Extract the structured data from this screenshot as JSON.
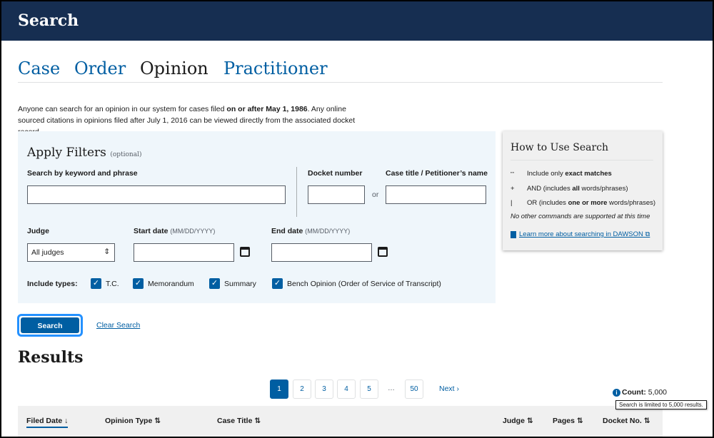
{
  "header": {
    "title": "Search"
  },
  "tabs": [
    {
      "label": "Case"
    },
    {
      "label": "Order"
    },
    {
      "label": "Opinion",
      "active": true
    },
    {
      "label": "Practitioner"
    }
  ],
  "intro": {
    "part1": "Anyone can search for an opinion in our system for cases filed ",
    "bold": "on or after May 1, 1986",
    "part2": ". Any online sourced citations in opinions filed after July 1, 2016 can be viewed directly from the associated docket record."
  },
  "filters": {
    "title": "Apply Filters",
    "optional": "(optional)",
    "keyword_label": "Search by keyword and phrase",
    "keyword_value": "",
    "docket_label": "Docket number",
    "docket_value": "",
    "or": "or",
    "case_title_label": "Case title / Petitioner’s name",
    "case_title_value": "",
    "judge_label": "Judge",
    "judge_value": "All judges",
    "start_label": "Start date",
    "start_hint": "(MM/DD/YYYY)",
    "end_label": "End date",
    "end_hint": "(MM/DD/YYYY)",
    "include_label": "Include types:",
    "types": [
      {
        "label": "T.C.",
        "checked": true
      },
      {
        "label": "Memorandum",
        "checked": true
      },
      {
        "label": "Summary",
        "checked": true
      },
      {
        "label": "Bench Opinion (Order of Service of Transcript)",
        "checked": true
      }
    ]
  },
  "help": {
    "title": "How to Use Search",
    "rows": [
      {
        "sym": "\"\"",
        "pre": "Include only ",
        "bold": "exact matches",
        "post": ""
      },
      {
        "sym": "+",
        "pre": "AND (includes ",
        "bold": "all",
        "post": " words/phrases)"
      },
      {
        "sym": "|",
        "pre": "OR (includes ",
        "bold": "one or more",
        "post": " words/phrases)"
      }
    ],
    "note": "No other commands are supported at this time",
    "link": "Learn more about searching in DAWSON"
  },
  "actions": {
    "search": "Search",
    "clear": "Clear Search"
  },
  "results": {
    "title": "Results",
    "pages": [
      "1",
      "2",
      "3",
      "4",
      "5",
      "…",
      "50"
    ],
    "current_page": "1",
    "next": "Next ›",
    "count_label": "Count:",
    "count": "5,000",
    "tooltip": "Search is limited to 5,000 results.",
    "columns": [
      {
        "label": "Filed Date",
        "sort": "desc"
      },
      {
        "label": "Opinion Type"
      },
      {
        "label": "Case Title"
      },
      {
        "label": "Judge"
      },
      {
        "label": "Pages"
      },
      {
        "label": "Docket No."
      }
    ]
  },
  "colors": {
    "header": "#162e51",
    "primary": "#005ea2",
    "filter_bg": "#eff6fb"
  }
}
